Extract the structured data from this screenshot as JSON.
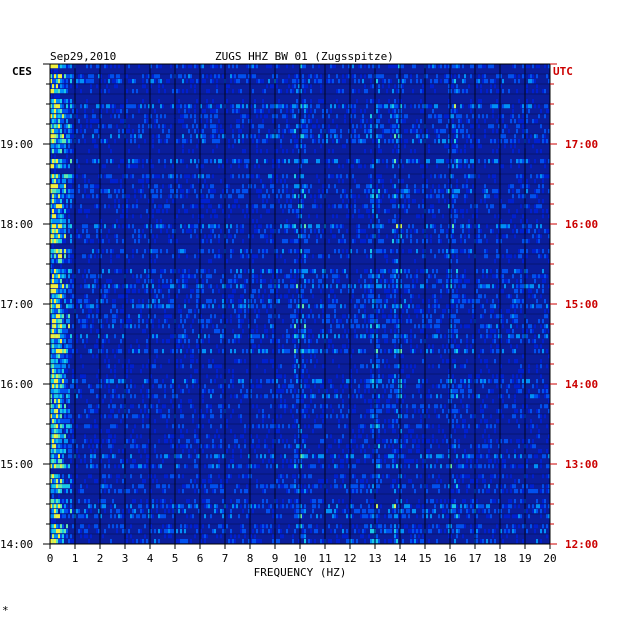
{
  "chart_data": {
    "type": "heatmap",
    "title_date": "Sep29,2010",
    "title_station": "ZUGS HHZ BW 01 (Zugsspitze)",
    "left_zone": "CES",
    "right_zone": "UTC",
    "xlabel": "FREQUENCY (HZ)",
    "xlim": [
      0,
      20
    ],
    "x_ticks": [
      "0",
      "1",
      "2",
      "3",
      "4",
      "5",
      "6",
      "7",
      "8",
      "9",
      "10",
      "11",
      "12",
      "13",
      "14",
      "15",
      "16",
      "17",
      "18",
      "19",
      "20"
    ],
    "left_time_labels": [
      "19:00",
      "18:00",
      "17:00",
      "16:00",
      "15:00",
      "14:00"
    ],
    "right_time_labels": [
      "17:00",
      "16:00",
      "15:00",
      "14:00",
      "13:00",
      "12:00"
    ],
    "time_label_fraction_from_top": [
      0.1667,
      0.3333,
      0.5,
      0.6667,
      0.8333,
      1.0
    ],
    "time_range_hours": 6,
    "strong_frequency_bands_hz": [
      0.3,
      10.0,
      13.0,
      13.9,
      16.1
    ],
    "colors": {
      "background_field": "#0a1e9c",
      "low": "#0000a0",
      "mid": "#18c8e8",
      "high": "#f0f040",
      "left_axis_text": "#000000",
      "right_axis_text": "#cc0000"
    },
    "footer_mark": "*"
  }
}
